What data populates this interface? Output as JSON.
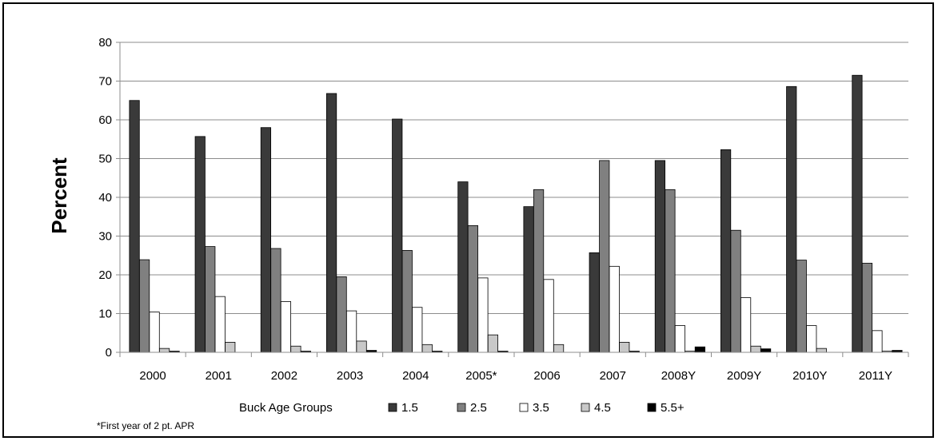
{
  "chart_data": {
    "type": "bar",
    "title": "",
    "xlabel": "",
    "ylabel": "Percent",
    "ylim": [
      0,
      80
    ],
    "yticks": [
      0,
      10,
      20,
      30,
      40,
      50,
      60,
      70,
      80
    ],
    "grid": true,
    "legend_placement": "bottom",
    "legend_title": "Buck Age Groups",
    "categories": [
      "2000",
      "2001",
      "2002",
      "2003",
      "2004",
      "2005*",
      "2006",
      "2007",
      "2008Y",
      "2009Y",
      "2010Y",
      "2011Y"
    ],
    "series": [
      {
        "name": "1.5",
        "color": "#3a3a3a",
        "values": [
          65.0,
          55.7,
          58.0,
          66.8,
          60.2,
          44.0,
          37.6,
          25.7,
          49.5,
          52.3,
          68.6,
          71.5
        ]
      },
      {
        "name": "2.5",
        "color": "#808080",
        "values": [
          23.9,
          27.3,
          26.8,
          19.5,
          26.3,
          32.7,
          42.0,
          49.5,
          42.0,
          31.5,
          23.8,
          23.0
        ]
      },
      {
        "name": "3.5",
        "color": "#ffffff",
        "values": [
          10.4,
          14.4,
          13.1,
          10.7,
          11.6,
          19.2,
          18.8,
          22.2,
          6.9,
          14.1,
          6.9,
          5.6
        ]
      },
      {
        "name": "4.5",
        "color": "#c8c8c8",
        "values": [
          1.0,
          2.6,
          1.6,
          2.9,
          2.0,
          4.5,
          2.0,
          2.6,
          0.3,
          1.6,
          1.0,
          0.3
        ]
      },
      {
        "name": "5.5+",
        "color": "#000000",
        "values": [
          0.3,
          0.0,
          0.3,
          0.5,
          0.3,
          0.3,
          0.0,
          0.3,
          1.4,
          0.9,
          0.0,
          0.5
        ]
      }
    ],
    "footnote": "*First year of 2 pt. APR"
  }
}
